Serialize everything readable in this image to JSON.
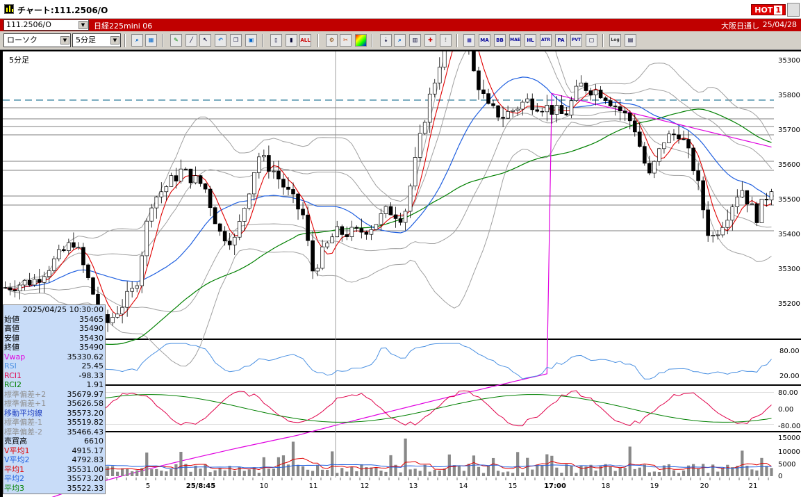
{
  "window": {
    "title": "チャート:111.2506/O",
    "hot_label": "HOT",
    "hot_number": "1"
  },
  "infobar": {
    "symbol": "111.2506/O",
    "instrument": "日経225mini 06",
    "session": "大阪日通し",
    "date": "25/04/28"
  },
  "toolbar": {
    "chart_type": "ローソク",
    "interval": "5分足",
    "icons": [
      "zoom-icon",
      "window-icon",
      "pen-icon",
      "line-tool-icon",
      "cursor-icon",
      "undo-icon",
      "copy-icon",
      "delete-icon",
      "columns-add-icon",
      "columns-remove-icon",
      "clear-all-icon",
      "settings-icon",
      "tools-icon",
      "color-icon",
      "download-icon",
      "search-icon",
      "indicator-icon",
      "cross-icon",
      "blank-icon",
      "ma-icon",
      "bb-icon",
      "mae-icon",
      "hl-icon",
      "atr-icon",
      "pa-icon",
      "pvt-icon",
      "box-icon",
      "log-icon",
      "panel-icon"
    ],
    "all_label": "ALL",
    "ma_label": "MA",
    "bb_label": "BB",
    "mae_label": "MAE",
    "hl_label": "HL",
    "atr_label": "ATR",
    "pa_label": "PA",
    "pvt_label": "PVT",
    "log_label": "Log"
  },
  "chart": {
    "panel_label": "5分足",
    "price_ticks": [
      "35300",
      "35800",
      "35700",
      "35600",
      "35500",
      "35400",
      "35300",
      "35200"
    ],
    "rsi_ticks": [
      "80.00",
      "20.00"
    ],
    "rci_ticks": [
      "80.00",
      "0.00",
      "-80.00"
    ],
    "volume_ticks": [
      "15000",
      "10000",
      "5000",
      "0"
    ],
    "x_labels": [
      "5",
      "25/8:45",
      "10",
      "11",
      "12",
      "13",
      "14",
      "15",
      "17:00",
      "18",
      "19",
      "20",
      "21"
    ],
    "colors": {
      "candle_up": "#ffffff",
      "candle_down": "#000000",
      "ma_short": "#e00000",
      "ma_mid": "#2060e0",
      "ma_long": "#008000",
      "vwap": "#e000e0",
      "bollinger": "#a0a0a0",
      "rsi": "#4a90e2",
      "rci1": "#e0004a",
      "rci2": "#008000",
      "dashed_level": "#2a7a9a"
    }
  },
  "chart_data": {
    "type": "candlestick",
    "price_axis": [
      35200,
      35800
    ],
    "key_price_lines": [
      35500,
      35600,
      35700,
      35800
    ],
    "dashed_level": 35780
  },
  "data_window": {
    "timestamp": "2025/04/25  10:30:00",
    "rows": [
      {
        "label": "始値",
        "value": "35465",
        "color": "#000000"
      },
      {
        "label": "高値",
        "value": "35490",
        "color": "#000000"
      },
      {
        "label": "安値",
        "value": "35430",
        "color": "#000000"
      },
      {
        "label": "終値",
        "value": "35490",
        "color": "#000000"
      },
      {
        "label": "Vwap",
        "value": "35330.62",
        "color": "#e000e0"
      },
      {
        "label": "RSI",
        "value": "25.45",
        "color": "#4a90e2"
      },
      {
        "label": "RCI1",
        "value": "-98.33",
        "color": "#e0004a"
      },
      {
        "label": "RCI2",
        "value": "1.91",
        "color": "#008000"
      },
      {
        "label": "標準偏差+2",
        "value": "35679.97",
        "color": "#909090"
      },
      {
        "label": "標準偏差+1",
        "value": "35626.58",
        "color": "#909090"
      },
      {
        "label": "移動平均線",
        "value": "35573.20",
        "color": "#2040c0"
      },
      {
        "label": "標準偏差-1",
        "value": "35519.82",
        "color": "#909090"
      },
      {
        "label": "標準偏差-2",
        "value": "35466.43",
        "color": "#909090"
      },
      {
        "label": "売買高",
        "value": "6610",
        "color": "#000000"
      },
      {
        "label": "V平均1",
        "value": "4915.17",
        "color": "#e00000"
      },
      {
        "label": "V平均2",
        "value": "4792.83",
        "color": "#2060e0"
      },
      {
        "label": "平均1",
        "value": "35531.00",
        "color": "#e00000"
      },
      {
        "label": "平均2",
        "value": "35573.20",
        "color": "#2060e0"
      },
      {
        "label": "平均3",
        "value": "35522.33",
        "color": "#008000"
      }
    ]
  }
}
